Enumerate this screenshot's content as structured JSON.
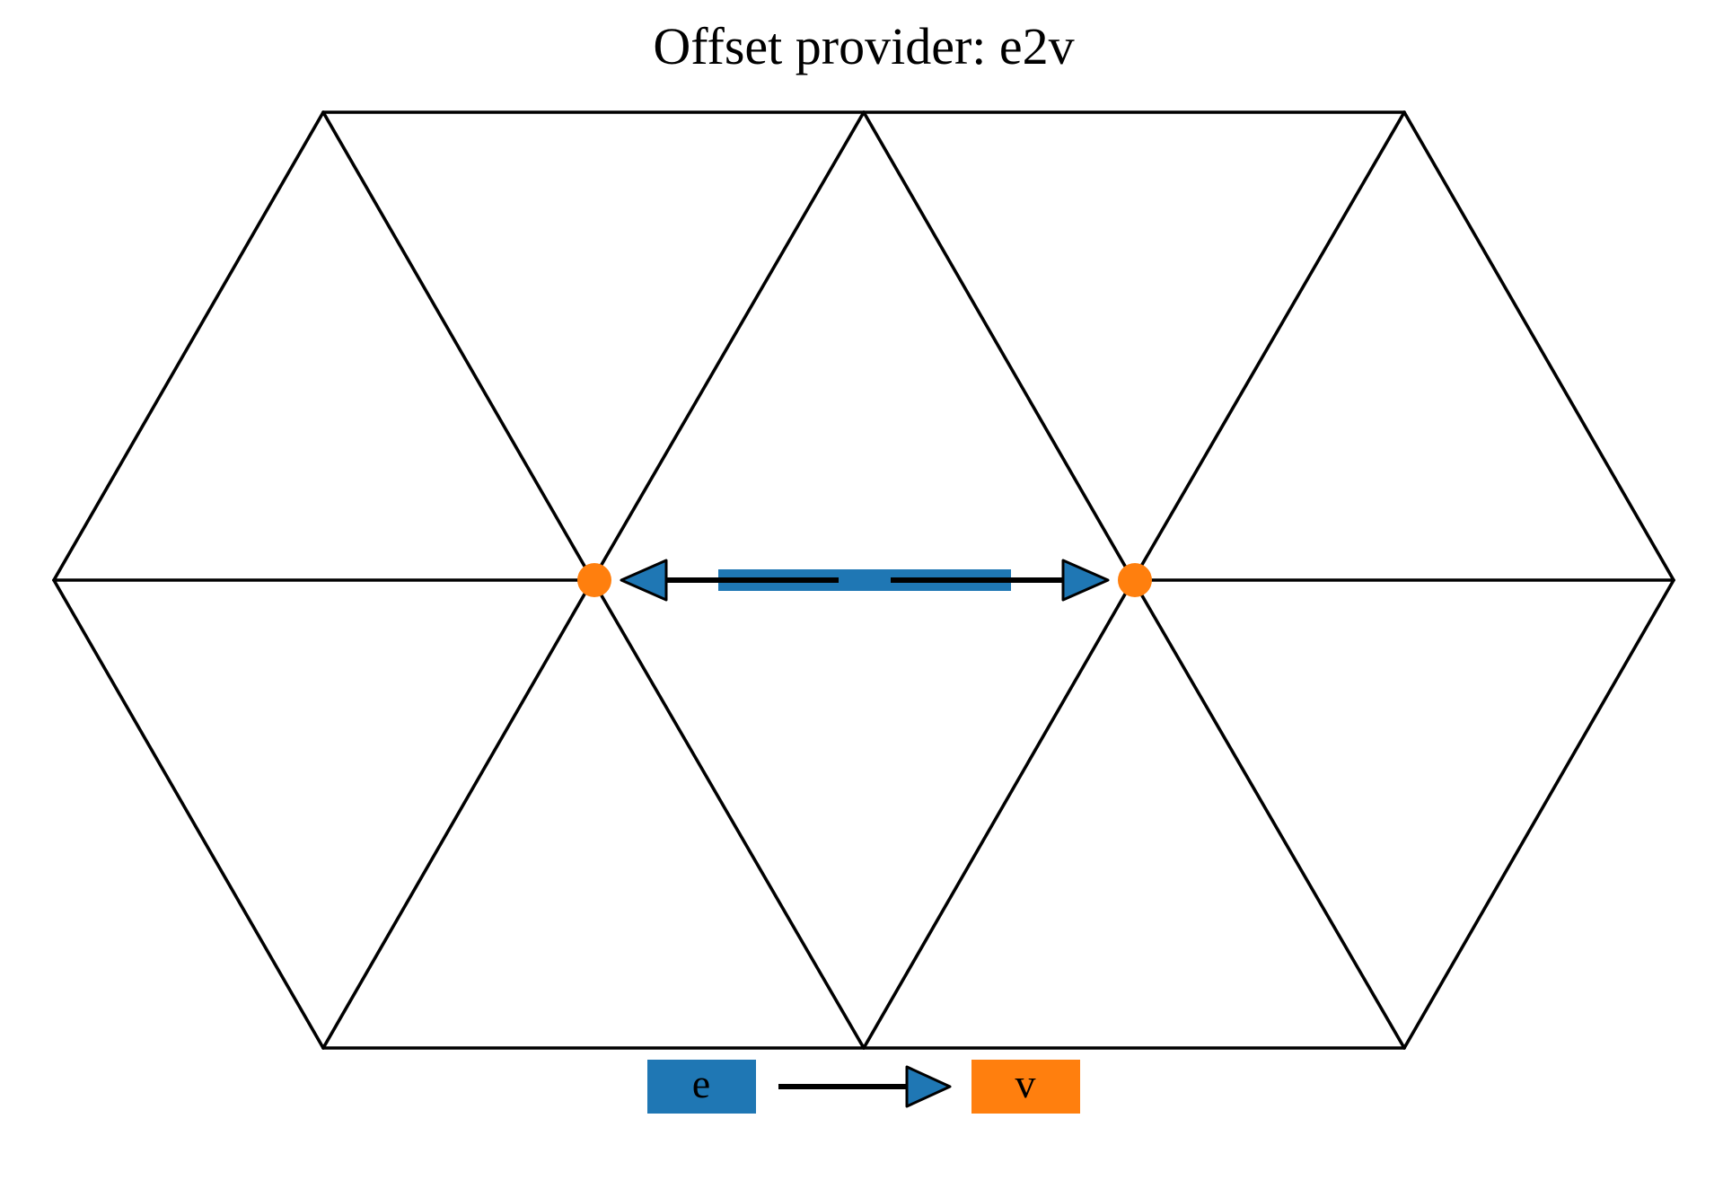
{
  "title": "Offset provider: e2v",
  "colors": {
    "edge": "#1f77b4",
    "vertex": "#ff7f0e",
    "mesh": "#000000",
    "arrow_outline": "#000000",
    "background": "#ffffff"
  },
  "diagram": {
    "mesh": "hexagon of six equilateral triangles",
    "highlighted_edge": "horizontal edge between the two central vertices",
    "highlighted_vertices": 2,
    "arrow_direction": "from edge center outward to each vertex"
  },
  "legend": {
    "source_label": "e",
    "target_label": "v",
    "connector": "arrow"
  }
}
